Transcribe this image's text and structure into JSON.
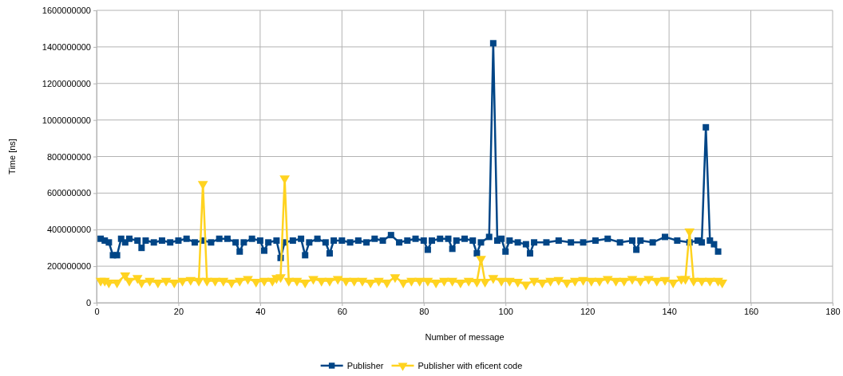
{
  "chart_data": {
    "type": "line",
    "xlabel": "Number of message",
    "ylabel": "Time [ns]",
    "xlim": [
      0,
      180
    ],
    "xticks": [
      0,
      20,
      40,
      60,
      80,
      100,
      120,
      140,
      160,
      180
    ],
    "ylim": [
      0,
      1600000000
    ],
    "yticks": [
      0,
      200000000,
      400000000,
      600000000,
      800000000,
      1000000000,
      1200000000,
      1400000000,
      1600000000
    ],
    "grid": true,
    "legend": "bottom",
    "series": [
      {
        "name": "Publisher",
        "color": "#004586",
        "marker": "square",
        "x": [
          1,
          2,
          3,
          4,
          5,
          6,
          7,
          8,
          10,
          11,
          12,
          14,
          16,
          18,
          20,
          22,
          24,
          26,
          28,
          30,
          32,
          34,
          35,
          36,
          38,
          40,
          41,
          42,
          44,
          45,
          46,
          48,
          50,
          51,
          52,
          54,
          56,
          57,
          58,
          60,
          62,
          64,
          66,
          68,
          70,
          72,
          74,
          76,
          78,
          80,
          81,
          82,
          84,
          86,
          87,
          88,
          90,
          92,
          93,
          94,
          96,
          97,
          98,
          99,
          100,
          101,
          103,
          105,
          106,
          107,
          110,
          113,
          116,
          119,
          122,
          125,
          128,
          131,
          132,
          133,
          136,
          139,
          142,
          145,
          147,
          148,
          149,
          150,
          151,
          152
        ],
        "values": [
          350000000,
          340000000,
          330000000,
          260000000,
          260000000,
          350000000,
          330000000,
          350000000,
          340000000,
          300000000,
          340000000,
          330000000,
          340000000,
          330000000,
          340000000,
          350000000,
          330000000,
          340000000,
          330000000,
          350000000,
          350000000,
          330000000,
          280000000,
          330000000,
          350000000,
          340000000,
          285000000,
          330000000,
          340000000,
          245000000,
          330000000,
          340000000,
          350000000,
          260000000,
          330000000,
          350000000,
          330000000,
          270000000,
          340000000,
          340000000,
          330000000,
          340000000,
          330000000,
          350000000,
          340000000,
          370000000,
          330000000,
          340000000,
          350000000,
          340000000,
          290000000,
          340000000,
          350000000,
          350000000,
          295000000,
          340000000,
          350000000,
          340000000,
          270000000,
          330000000,
          360000000,
          1420000000,
          340000000,
          350000000,
          280000000,
          340000000,
          330000000,
          320000000,
          270000000,
          330000000,
          330000000,
          340000000,
          330000000,
          330000000,
          340000000,
          350000000,
          330000000,
          340000000,
          290000000,
          340000000,
          330000000,
          360000000,
          340000000,
          330000000,
          340000000,
          330000000,
          960000000,
          340000000,
          320000000,
          280000000
        ]
      },
      {
        "name": "Publisher with eficent code",
        "color": "#ffd320",
        "marker": "triangle",
        "x": [
          1,
          2,
          3,
          5,
          7,
          8,
          10,
          11,
          13,
          15,
          17,
          19,
          21,
          23,
          25,
          26,
          27,
          29,
          31,
          33,
          35,
          37,
          39,
          41,
          43,
          44,
          45,
          46,
          47,
          49,
          51,
          53,
          55,
          57,
          59,
          61,
          63,
          65,
          67,
          69,
          71,
          73,
          75,
          77,
          79,
          81,
          83,
          85,
          87,
          89,
          91,
          93,
          94,
          95,
          97,
          99,
          101,
          103,
          105,
          107,
          109,
          111,
          113,
          115,
          117,
          119,
          121,
          123,
          125,
          127,
          129,
          131,
          133,
          135,
          137,
          139,
          141,
          143,
          144,
          145,
          146,
          148,
          150,
          152,
          153
        ],
        "values": [
          120000000,
          120000000,
          110000000,
          110000000,
          150000000,
          120000000,
          135000000,
          110000000,
          120000000,
          110000000,
          120000000,
          110000000,
          120000000,
          125000000,
          120000000,
          650000000,
          120000000,
          120000000,
          120000000,
          110000000,
          120000000,
          130000000,
          115000000,
          120000000,
          120000000,
          135000000,
          140000000,
          680000000,
          120000000,
          120000000,
          110000000,
          130000000,
          120000000,
          120000000,
          130000000,
          120000000,
          120000000,
          120000000,
          110000000,
          120000000,
          110000000,
          140000000,
          110000000,
          120000000,
          120000000,
          120000000,
          110000000,
          120000000,
          120000000,
          110000000,
          120000000,
          115000000,
          240000000,
          115000000,
          135000000,
          120000000,
          120000000,
          115000000,
          100000000,
          120000000,
          110000000,
          120000000,
          125000000,
          110000000,
          120000000,
          125000000,
          120000000,
          120000000,
          130000000,
          120000000,
          120000000,
          130000000,
          120000000,
          130000000,
          120000000,
          125000000,
          110000000,
          130000000,
          130000000,
          390000000,
          120000000,
          120000000,
          120000000,
          120000000,
          110000000
        ]
      }
    ]
  }
}
